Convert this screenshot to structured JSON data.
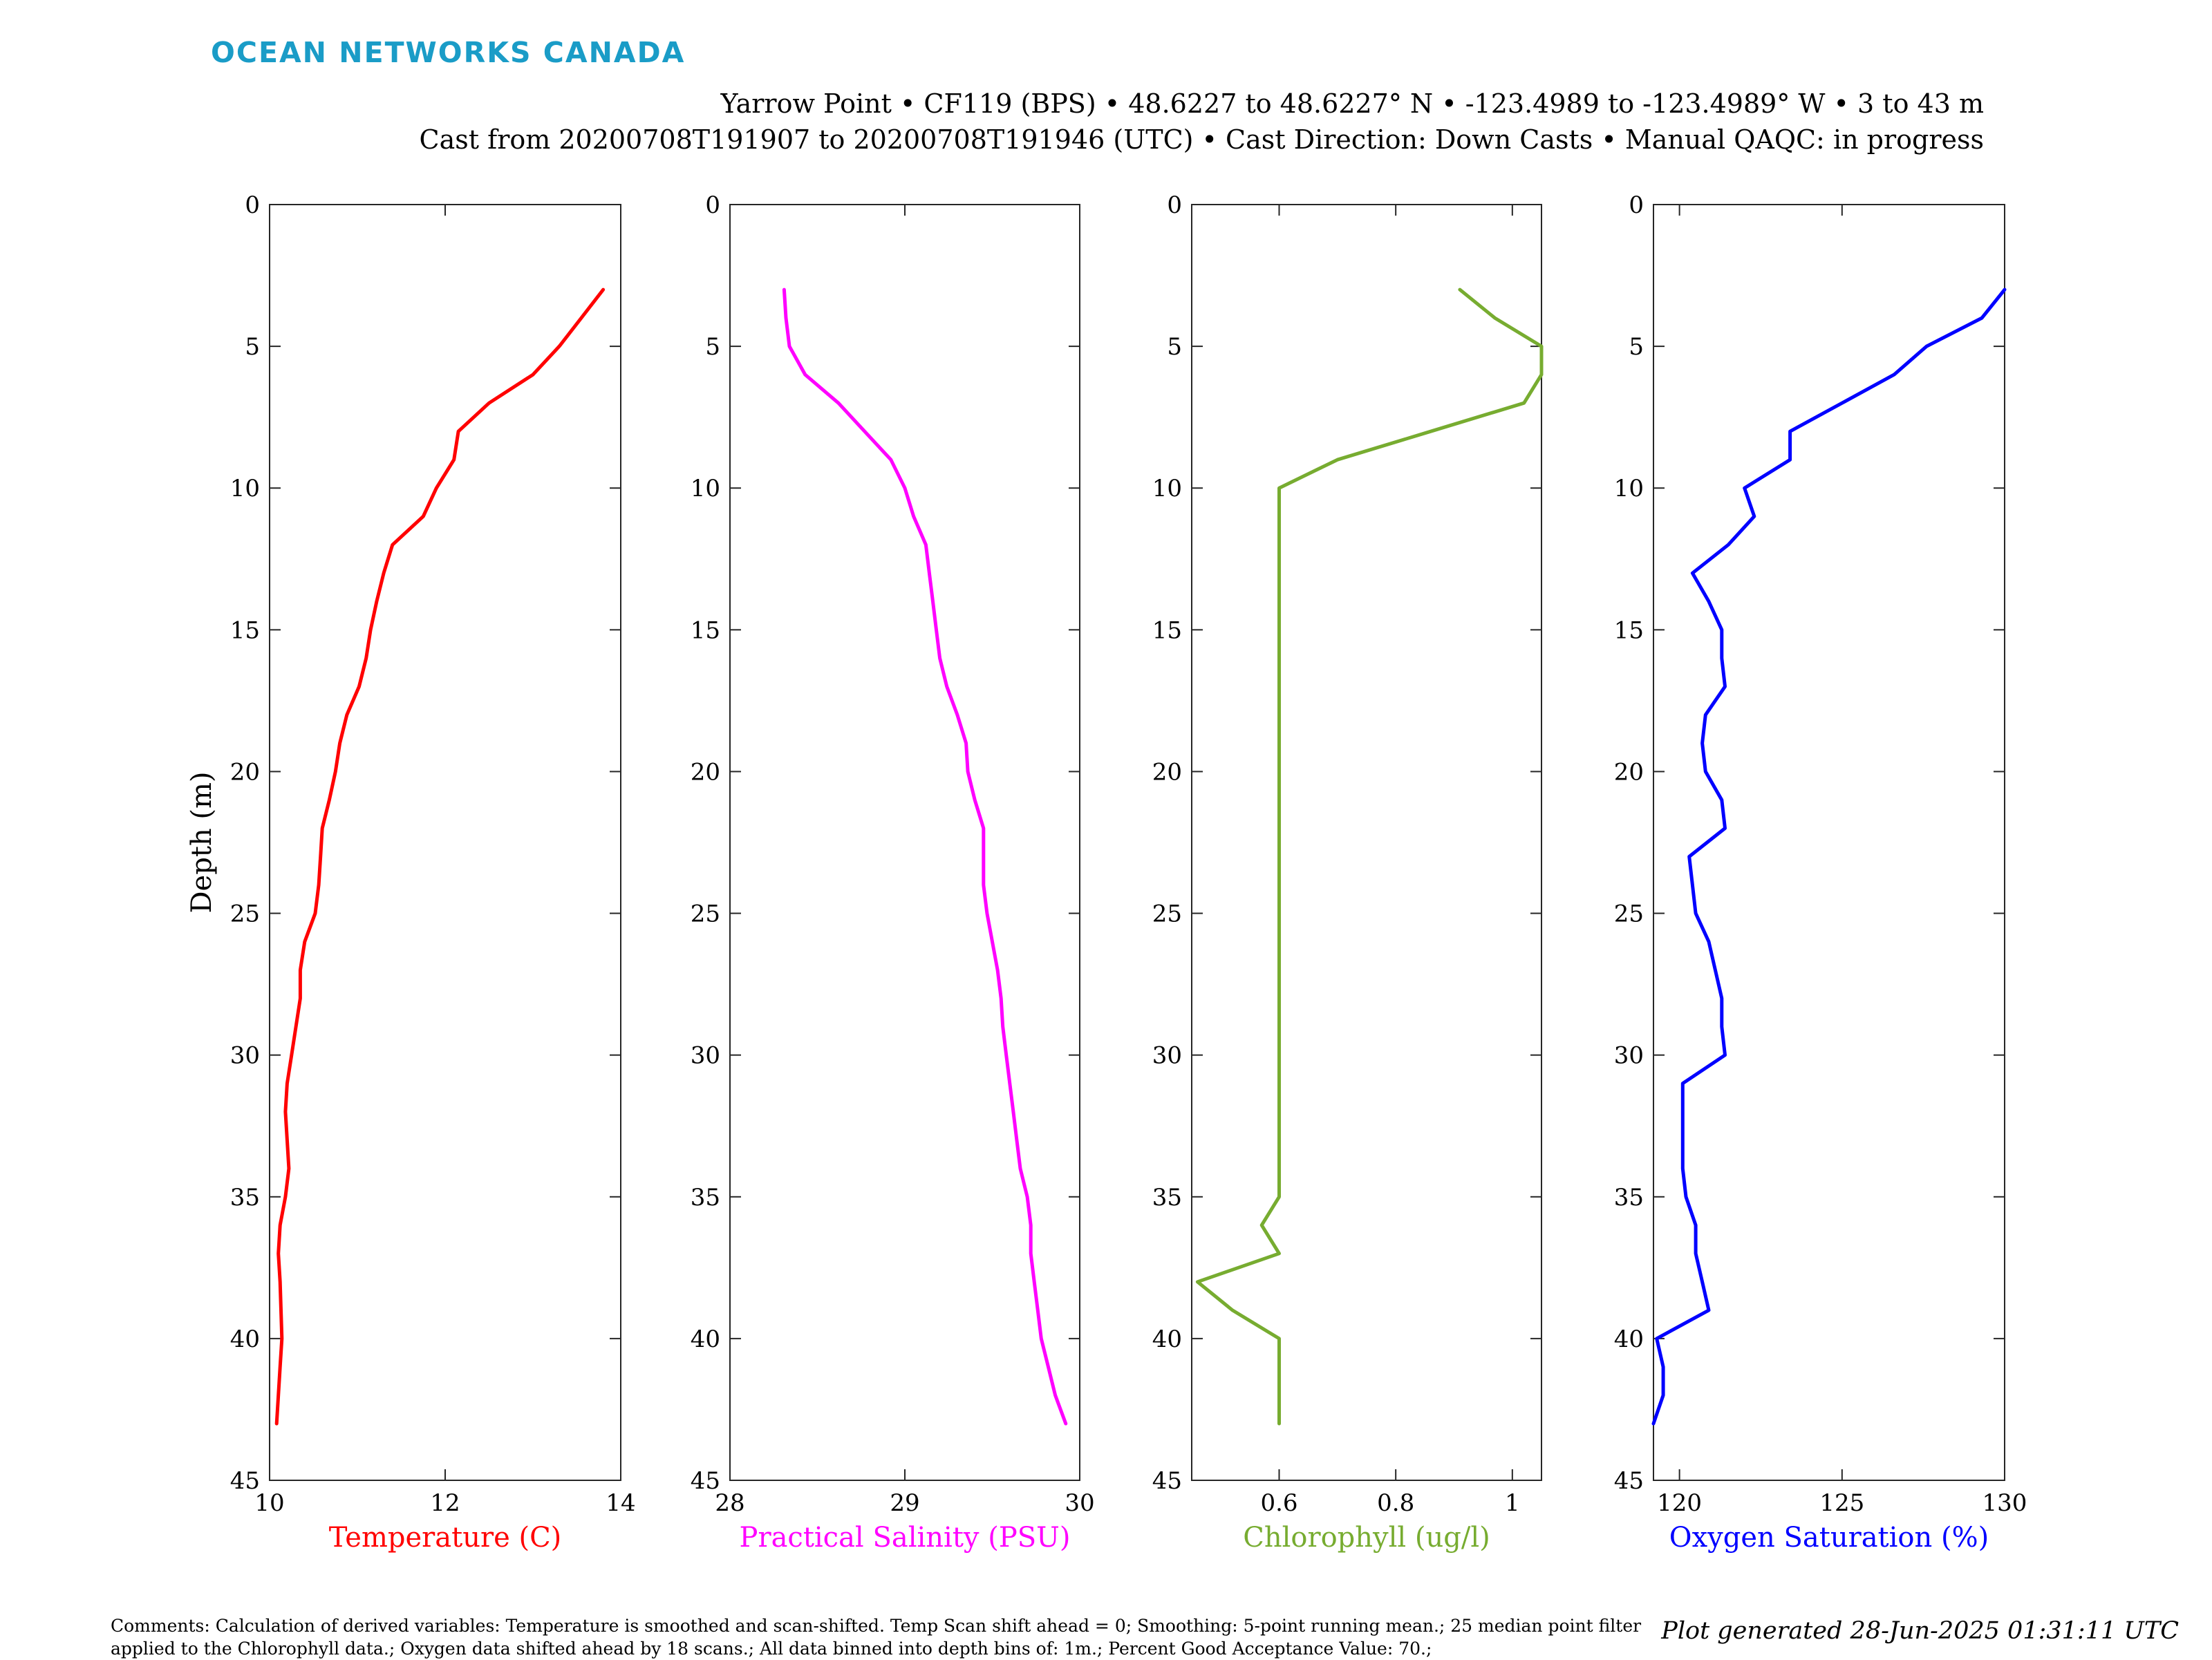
{
  "brand": "OCEAN NETWORKS CANADA",
  "header": {
    "line1": "Yarrow Point • CF119 (BPS) • 48.6227 to 48.6227° N • -123.4989 to -123.4989° W • 3 to 43 m",
    "line2": "Cast from 20200708T191907 to 20200708T191946 (UTC) • Cast Direction: Down Casts • Manual QAQC: in progress"
  },
  "comments": "Comments: Calculation of derived variables: Temperature is smoothed and scan-shifted. Temp Scan shift ahead = 0; Smoothing: 5-point running mean.; 25 median point filter applied to the Chlorophyll data.; Oxygen data shifted ahead by 18 scans.; All data binned into depth bins of: 1m.; Percent Good Acceptance Value: 70.;",
  "generated": "Plot generated 28-Jun-2025 01:31:11 UTC",
  "colors": {
    "brand": "#1a9cc7",
    "temperature": "#ff0000",
    "salinity": "#ff00ff",
    "chlorophyll": "#77ac30",
    "oxygen": "#0000ff"
  },
  "chart_data": [
    {
      "type": "line",
      "ylabel": "Depth (m)",
      "xlabel": "Temperature (C)",
      "color": "#ff0000",
      "xlim": [
        10,
        14
      ],
      "xticks": [
        10,
        12,
        14
      ],
      "ylim": [
        0,
        45
      ],
      "yticks": [
        0,
        5,
        10,
        15,
        20,
        25,
        30,
        35,
        40,
        45
      ],
      "y_reversed": true,
      "depth": [
        3,
        4,
        5,
        6,
        7,
        8,
        9,
        10,
        11,
        12,
        13,
        14,
        15,
        16,
        17,
        18,
        19,
        20,
        21,
        22,
        23,
        24,
        25,
        26,
        27,
        28,
        29,
        30,
        31,
        32,
        33,
        34,
        35,
        36,
        37,
        38,
        39,
        40,
        41,
        42,
        43
      ],
      "x": [
        13.8,
        13.55,
        13.3,
        13.0,
        12.5,
        12.15,
        12.1,
        11.9,
        11.75,
        11.4,
        11.3,
        11.22,
        11.15,
        11.1,
        11.02,
        10.88,
        10.8,
        10.75,
        10.68,
        10.6,
        10.58,
        10.56,
        10.52,
        10.4,
        10.35,
        10.35,
        10.3,
        10.25,
        10.2,
        10.18,
        10.2,
        10.22,
        10.18,
        10.12,
        10.1,
        10.12,
        10.13,
        10.14,
        10.12,
        10.1,
        10.08
      ]
    },
    {
      "type": "line",
      "xlabel": "Practical Salinity (PSU)",
      "color": "#ff00ff",
      "xlim": [
        28,
        30
      ],
      "xticks": [
        28,
        29,
        30
      ],
      "ylim": [
        0,
        45
      ],
      "yticks": [
        0,
        5,
        10,
        15,
        20,
        25,
        30,
        35,
        40,
        45
      ],
      "y_reversed": true,
      "depth": [
        3,
        4,
        5,
        6,
        7,
        8,
        9,
        10,
        11,
        12,
        13,
        14,
        15,
        16,
        17,
        18,
        19,
        20,
        21,
        22,
        23,
        24,
        25,
        26,
        27,
        28,
        29,
        30,
        31,
        32,
        33,
        34,
        35,
        36,
        37,
        38,
        39,
        40,
        41,
        42,
        43
      ],
      "x": [
        28.31,
        28.32,
        28.34,
        28.43,
        28.62,
        28.77,
        28.92,
        29.0,
        29.05,
        29.12,
        29.14,
        29.16,
        29.18,
        29.2,
        29.24,
        29.3,
        29.35,
        29.36,
        29.4,
        29.45,
        29.45,
        29.45,
        29.47,
        29.5,
        29.53,
        29.55,
        29.56,
        29.58,
        29.6,
        29.62,
        29.64,
        29.66,
        29.7,
        29.72,
        29.72,
        29.74,
        29.76,
        29.78,
        29.82,
        29.86,
        29.92
      ]
    },
    {
      "type": "line",
      "xlabel": "Chlorophyll (ug/l)",
      "color": "#77ac30",
      "xlim": [
        0.45,
        1.05
      ],
      "xticks": [
        0.6,
        0.8,
        1
      ],
      "ylim": [
        0,
        45
      ],
      "yticks": [
        0,
        5,
        10,
        15,
        20,
        25,
        30,
        35,
        40,
        45
      ],
      "y_reversed": true,
      "depth": [
        3,
        4,
        5,
        6,
        7,
        8,
        9,
        10,
        11,
        12,
        13,
        14,
        15,
        16,
        17,
        18,
        19,
        20,
        21,
        22,
        23,
        24,
        25,
        26,
        27,
        28,
        29,
        30,
        31,
        32,
        33,
        34,
        35,
        36,
        37,
        38,
        39,
        40,
        41,
        42,
        43
      ],
      "x": [
        0.91,
        0.97,
        1.05,
        1.05,
        1.02,
        0.86,
        0.7,
        0.6,
        0.6,
        0.6,
        0.6,
        0.6,
        0.6,
        0.6,
        0.6,
        0.6,
        0.6,
        0.6,
        0.6,
        0.6,
        0.6,
        0.6,
        0.6,
        0.6,
        0.6,
        0.6,
        0.6,
        0.6,
        0.6,
        0.6,
        0.6,
        0.6,
        0.6,
        0.57,
        0.6,
        0.46,
        0.52,
        0.6,
        0.6,
        0.6,
        0.6
      ]
    },
    {
      "type": "line",
      "xlabel": "Oxygen Saturation (%)",
      "color": "#0000ff",
      "xlim": [
        119.2,
        130
      ],
      "xticks": [
        120,
        125,
        130
      ],
      "ylim": [
        0,
        45
      ],
      "yticks": [
        0,
        5,
        10,
        15,
        20,
        25,
        30,
        35,
        40,
        45
      ],
      "y_reversed": true,
      "depth": [
        3,
        4,
        5,
        6,
        7,
        8,
        9,
        10,
        11,
        12,
        13,
        14,
        15,
        16,
        17,
        18,
        19,
        20,
        21,
        22,
        23,
        24,
        25,
        26,
        27,
        28,
        29,
        30,
        31,
        32,
        33,
        34,
        35,
        36,
        37,
        38,
        39,
        40,
        41,
        42,
        43
      ],
      "x": [
        130.0,
        129.3,
        127.6,
        126.6,
        125.0,
        123.4,
        123.4,
        122.0,
        122.3,
        121.5,
        120.4,
        120.9,
        121.3,
        121.3,
        121.4,
        120.8,
        120.7,
        120.8,
        121.3,
        121.4,
        120.3,
        120.4,
        120.5,
        120.9,
        121.1,
        121.3,
        121.3,
        121.4,
        120.1,
        120.1,
        120.1,
        120.1,
        120.2,
        120.5,
        120.5,
        120.7,
        120.9,
        119.3,
        119.5,
        119.5,
        119.2
      ]
    }
  ]
}
